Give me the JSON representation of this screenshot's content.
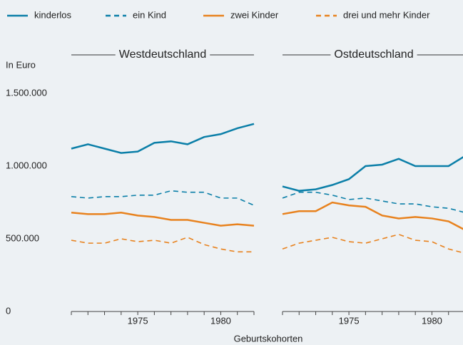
{
  "chart_data": [
    {
      "type": "line",
      "title": "Westdeutschland",
      "y_label": "In Euro",
      "x_label": "Geburtskohorten",
      "x": [
        1971,
        1972,
        1973,
        1974,
        1975,
        1976,
        1977,
        1978,
        1979,
        1980,
        1981,
        1982
      ],
      "xlim": [
        1971,
        1982
      ],
      "xticks": [
        1975,
        1980
      ],
      "ylim": [
        0,
        1500000
      ],
      "yticks": [
        0,
        {
          "value": 500000,
          "label": "500.000"
        },
        {
          "value": 1000000,
          "label": "1.000.000"
        },
        {
          "value": 1500000,
          "label": "1.500.000"
        }
      ],
      "series": [
        {
          "name": "kinderlos",
          "color": "#0b7fa8",
          "dashed": false,
          "values": [
            1120000,
            1150000,
            1120000,
            1090000,
            1100000,
            1160000,
            1170000,
            1150000,
            1200000,
            1220000,
            1260000,
            1290000
          ]
        },
        {
          "name": "ein Kind",
          "color": "#0b7fa8",
          "dashed": true,
          "values": [
            790000,
            780000,
            790000,
            790000,
            800000,
            800000,
            830000,
            820000,
            820000,
            780000,
            780000,
            730000
          ]
        },
        {
          "name": "zwei Kinder",
          "color": "#e8821e",
          "dashed": false,
          "values": [
            680000,
            670000,
            670000,
            680000,
            660000,
            650000,
            630000,
            630000,
            610000,
            590000,
            600000,
            590000
          ]
        },
        {
          "name": "drei und mehr Kinder",
          "color": "#e8821e",
          "dashed": true,
          "values": [
            490000,
            470000,
            470000,
            500000,
            480000,
            490000,
            470000,
            510000,
            460000,
            430000,
            410000,
            410000
          ]
        }
      ]
    },
    {
      "type": "line",
      "title": "Ostdeutschland",
      "x": [
        1971,
        1972,
        1973,
        1974,
        1975,
        1976,
        1977,
        1978,
        1979,
        1980,
        1981,
        1982
      ],
      "xlim": [
        1971,
        1982
      ],
      "xticks": [
        1975,
        1980
      ],
      "ylim": [
        0,
        1500000
      ],
      "series": [
        {
          "name": "kinderlos",
          "color": "#0b7fa8",
          "dashed": false,
          "values": [
            860000,
            830000,
            840000,
            870000,
            910000,
            1000000,
            1010000,
            1050000,
            1000000,
            1000000,
            1000000,
            1070000
          ]
        },
        {
          "name": "ein Kind",
          "color": "#0b7fa8",
          "dashed": true,
          "values": [
            780000,
            820000,
            820000,
            800000,
            770000,
            780000,
            760000,
            740000,
            740000,
            720000,
            710000,
            680000
          ]
        },
        {
          "name": "zwei Kinder",
          "color": "#e8821e",
          "dashed": false,
          "values": [
            670000,
            690000,
            690000,
            750000,
            730000,
            720000,
            660000,
            640000,
            650000,
            640000,
            620000,
            560000
          ]
        },
        {
          "name": "drei und mehr Kinder",
          "color": "#e8821e",
          "dashed": true,
          "values": [
            430000,
            470000,
            490000,
            510000,
            480000,
            470000,
            500000,
            530000,
            490000,
            480000,
            430000,
            400000
          ]
        }
      ]
    }
  ]
}
